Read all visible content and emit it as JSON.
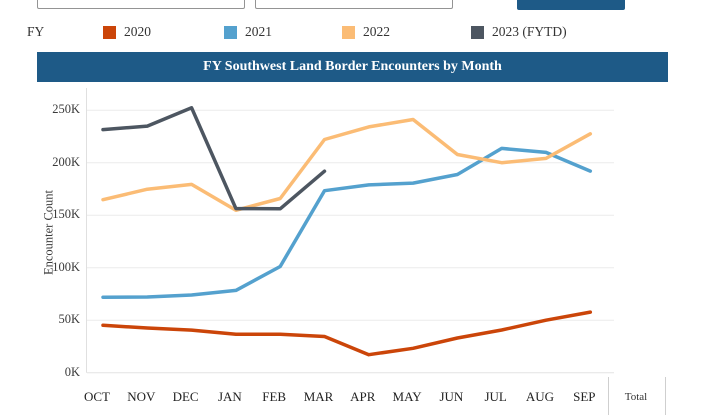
{
  "toolbar": {
    "start_input_value": "",
    "end_input_value": "",
    "button_color": "#1E5A87"
  },
  "legend": {
    "label": "FY",
    "items": [
      {
        "label": "2020",
        "color": "#CB4509"
      },
      {
        "label": "2021",
        "color": "#54A1CE"
      },
      {
        "label": "2022",
        "color": "#FBBC75"
      },
      {
        "label": "2023 (FYTD)",
        "color": "#4D5661"
      }
    ]
  },
  "banner": {
    "title": "FY Southwest Land Border Encounters by Month",
    "color": "#1E5A87"
  },
  "chart_data": {
    "type": "line",
    "title": "FY Southwest Land Border Encounters by Month",
    "xlabel": "",
    "ylabel": "Encounter Count",
    "unit": "thousands (K)",
    "categories": [
      "OCT",
      "NOV",
      "DEC",
      "JAN",
      "FEB",
      "MAR",
      "APR",
      "MAY",
      "JUN",
      "JUL",
      "AUG",
      "SEP"
    ],
    "extra_column": "Total",
    "ylim": [
      0,
      262
    ],
    "ytick_step": 50,
    "ytick_labels": [
      "0K",
      "50K",
      "100K",
      "150K",
      "200K",
      "250K"
    ],
    "grid": true,
    "legend_position": "top",
    "series": [
      {
        "name": "2020",
        "color": "#CB4509",
        "values": [
          45.1,
          42.6,
          40.6,
          36.7,
          36.7,
          34.5,
          17.1,
          23.2,
          33.0,
          40.7,
          50.0,
          57.7
        ]
      },
      {
        "name": "2021",
        "color": "#54A1CE",
        "values": [
          71.9,
          72.1,
          74.0,
          78.4,
          101.1,
          173.3,
          178.9,
          180.6,
          188.8,
          213.6,
          209.8,
          192.0
        ]
      },
      {
        "name": "2022",
        "color": "#FBBC75",
        "values": [
          164.8,
          174.8,
          179.3,
          154.7,
          165.9,
          222.1,
          234.1,
          241.1,
          207.8,
          200.0,
          204.1,
          227.5
        ]
      },
      {
        "name": "2023 (FYTD)",
        "color": "#4D5661",
        "values": [
          231.5,
          234.9,
          252.3,
          156.3,
          156.1,
          191.9,
          null,
          null,
          null,
          null,
          null,
          null
        ]
      }
    ]
  }
}
